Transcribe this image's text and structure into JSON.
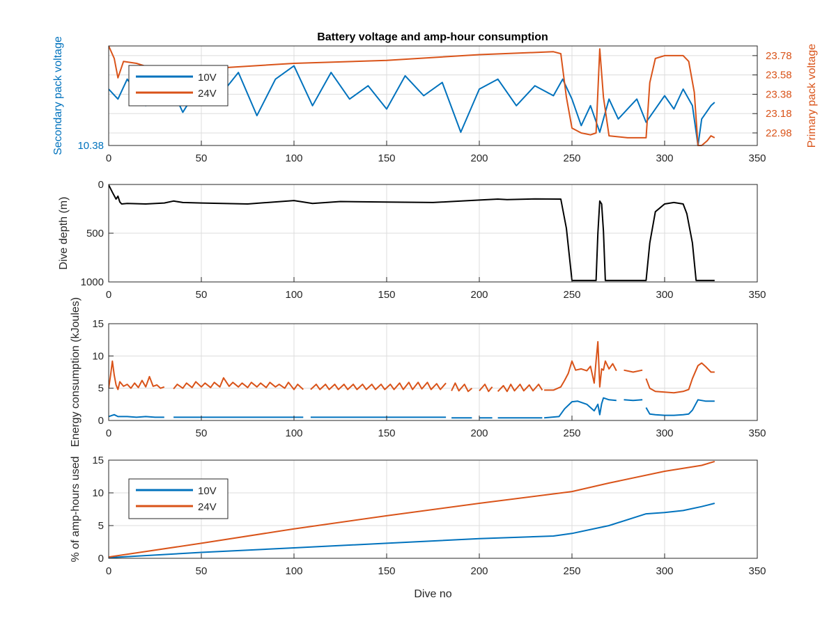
{
  "figure": {
    "title": "Battery voltage and amp-hour consumption",
    "xlabel_bottom": "Dive no",
    "colors": {
      "blue": "#0072BD",
      "orange": "#D95319",
      "black": "#000000",
      "grid": "#dcdcdc",
      "axis": "#262626"
    }
  },
  "chart_data": [
    {
      "id": "voltage",
      "type": "line",
      "title": "Battery voltage and amp-hour consumption",
      "xlabel": "",
      "ylabel_left": "Secondary pack voltage",
      "ylabel_right": "Primary pack voltage",
      "xlim": [
        0,
        350
      ],
      "xticks": [
        0,
        50,
        100,
        150,
        200,
        250,
        300,
        350
      ],
      "ylim_left": [
        10.38,
        10.68
      ],
      "yticks_left": [
        10.38
      ],
      "ylim_right": [
        22.85,
        23.88
      ],
      "yticks_right": [
        22.98,
        23.18,
        23.38,
        23.58,
        23.78
      ],
      "legend": {
        "entries": [
          "10V",
          "24V"
        ],
        "placement": "top-left"
      },
      "grid": true,
      "series": [
        {
          "name": "10V",
          "color": "#0072BD",
          "axis": "left",
          "x": [
            0,
            5,
            10,
            20,
            30,
            40,
            50,
            60,
            70,
            80,
            90,
            100,
            110,
            120,
            130,
            140,
            150,
            160,
            170,
            180,
            190,
            200,
            210,
            220,
            230,
            240,
            245,
            250,
            255,
            260,
            265,
            270,
            275,
            280,
            285,
            290,
            295,
            300,
            305,
            310,
            315,
            318,
            320,
            325,
            327
          ],
          "y": [
            10.55,
            10.52,
            10.58,
            10.5,
            10.6,
            10.48,
            10.57,
            10.53,
            10.6,
            10.47,
            10.58,
            10.62,
            10.5,
            10.6,
            10.52,
            10.56,
            10.49,
            10.59,
            10.53,
            10.57,
            10.42,
            10.55,
            10.58,
            10.5,
            10.56,
            10.53,
            10.58,
            10.52,
            10.44,
            10.5,
            10.42,
            10.52,
            10.46,
            10.49,
            10.52,
            10.45,
            10.49,
            10.53,
            10.49,
            10.55,
            10.5,
            10.38,
            10.46,
            10.5,
            10.51
          ]
        },
        {
          "name": "24V",
          "color": "#D95319",
          "axis": "right",
          "x": [
            0,
            3,
            5,
            8,
            15,
            20,
            30,
            50,
            100,
            150,
            200,
            240,
            244,
            247,
            250,
            255,
            260,
            263,
            265,
            267,
            270,
            280,
            290,
            292,
            295,
            300,
            310,
            313,
            316,
            318,
            320,
            323,
            325,
            327
          ],
          "y": [
            23.88,
            23.75,
            23.55,
            23.72,
            23.7,
            23.67,
            23.63,
            23.64,
            23.7,
            23.73,
            23.79,
            23.82,
            23.8,
            23.35,
            23.03,
            22.98,
            22.96,
            22.98,
            23.85,
            23.35,
            22.95,
            22.93,
            22.93,
            23.5,
            23.75,
            23.78,
            23.78,
            23.72,
            23.4,
            22.85,
            22.85,
            22.9,
            22.95,
            22.93
          ]
        }
      ]
    },
    {
      "id": "depth",
      "type": "line",
      "xlabel": "",
      "ylabel": "Dive depth (m)",
      "xlim": [
        0,
        350
      ],
      "xticks": [
        0,
        50,
        100,
        150,
        200,
        250,
        300,
        350
      ],
      "ylim": [
        0,
        1000
      ],
      "yticks": [
        0,
        500,
        1000
      ],
      "yreverse": true,
      "grid": true,
      "series": [
        {
          "color": "#000000",
          "x": [
            0,
            2,
            4,
            5,
            6,
            7,
            10,
            20,
            30,
            35,
            40,
            50,
            75,
            100,
            110,
            125,
            150,
            175,
            185,
            200,
            210,
            215,
            230,
            244,
            247,
            250,
            262,
            263,
            264,
            265,
            266,
            267,
            268,
            269,
            290,
            292,
            295,
            300,
            305,
            310,
            312,
            315,
            317,
            320,
            327
          ],
          "y": [
            5,
            80,
            150,
            120,
            180,
            200,
            195,
            200,
            190,
            170,
            185,
            190,
            200,
            165,
            195,
            175,
            180,
            185,
            175,
            160,
            150,
            155,
            148,
            150,
            450,
            985,
            985,
            985,
            500,
            170,
            200,
            480,
            985,
            985,
            985,
            600,
            280,
            200,
            185,
            200,
            300,
            600,
            985,
            985,
            985
          ]
        }
      ]
    },
    {
      "id": "energy",
      "type": "line",
      "xlabel": "",
      "ylabel": "Energy consumption (kJoules)",
      "xlim": [
        0,
        350
      ],
      "xticks": [
        0,
        50,
        100,
        150,
        200,
        250,
        300,
        350
      ],
      "ylim": [
        0,
        15
      ],
      "yticks": [
        0,
        5,
        10,
        15
      ],
      "grid": true,
      "series": [
        {
          "name": "24V",
          "color": "#D95319",
          "segments": [
            {
              "x": [
                0,
                1,
                2,
                3,
                4,
                5,
                6,
                8,
                10,
                12,
                14,
                16,
                18,
                20,
                22,
                24,
                26,
                28,
                30
              ],
              "y": [
                5,
                7,
                9.2,
                7,
                5.5,
                4.8,
                6,
                5.3,
                5.6,
                5,
                5.8,
                5.1,
                6.2,
                5.2,
                6.8,
                5.3,
                5.5,
                5.0,
                5.2
              ]
            },
            {
              "x": [
                35,
                37,
                40,
                42,
                45,
                47,
                50,
                52,
                55,
                57,
                60,
                62,
                65,
                67,
                70,
                72,
                75,
                77,
                80,
                82,
                85,
                87,
                90,
                92,
                95,
                97,
                100,
                102,
                105
              ],
              "y": [
                4.9,
                5.6,
                5,
                5.8,
                5.1,
                6,
                5.2,
                5.8,
                5.1,
                5.9,
                5.2,
                6.6,
                5.3,
                5.9,
                5.2,
                5.8,
                5.1,
                5.9,
                5.2,
                5.8,
                5.1,
                5.9,
                5.2,
                5.6,
                5,
                5.9,
                4.8,
                5.6,
                4.8
              ]
            },
            {
              "x": [
                109,
                112,
                114,
                117,
                119,
                122,
                124,
                127,
                129,
                132,
                134,
                137,
                139,
                142,
                144,
                147,
                149,
                152,
                154,
                157,
                159,
                162,
                164,
                167,
                169,
                172,
                174,
                177,
                179,
                182
              ],
              "y": [
                4.8,
                5.6,
                4.8,
                5.6,
                4.8,
                5.6,
                4.8,
                5.6,
                4.8,
                5.6,
                4.8,
                5.6,
                4.8,
                5.6,
                4.8,
                5.6,
                4.8,
                5.6,
                4.8,
                5.8,
                4.8,
                5.9,
                4.8,
                5.9,
                4.9,
                5.9,
                4.8,
                5.7,
                4.8,
                5.8
              ]
            },
            {
              "x": [
                185,
                187,
                189,
                192,
                194,
                196
              ],
              "y": [
                4.6,
                5.8,
                4.6,
                5.6,
                4.5,
                5.0
              ]
            },
            {
              "x": [
                200,
                203,
                205,
                207
              ],
              "y": [
                4.6,
                5.6,
                4.5,
                5.2
              ]
            },
            {
              "x": [
                210,
                213,
                215,
                217,
                219,
                222,
                224,
                227,
                229,
                232,
                234
              ],
              "y": [
                4.5,
                5.4,
                4.5,
                5.6,
                4.6,
                5.6,
                4.6,
                5.5,
                4.6,
                5.6,
                4.7
              ]
            },
            {
              "x": [
                235,
                240,
                244,
                246,
                248,
                250,
                252,
                255,
                258,
                260,
                262,
                263,
                264,
                265,
                266,
                267,
                268,
                270,
                272,
                274
              ],
              "y": [
                4.7,
                4.7,
                5.2,
                6.2,
                7.3,
                9.2,
                7.8,
                8,
                7.7,
                8.4,
                5.8,
                9.2,
                12.2,
                5.2,
                8.0,
                7.8,
                9.2,
                8.0,
                8.8,
                7.7
              ]
            },
            {
              "x": [
                278,
                283,
                288
              ],
              "y": [
                7.8,
                7.5,
                7.8
              ]
            },
            {
              "x": [
                290,
                292,
                295,
                300,
                305,
                310,
                313,
                315,
                318,
                320,
                322,
                325,
                327
              ],
              "y": [
                6.5,
                5.0,
                4.5,
                4.4,
                4.3,
                4.5,
                4.8,
                6.5,
                8.5,
                8.9,
                8.4,
                7.5,
                7.5
              ]
            }
          ]
        },
        {
          "name": "10V",
          "color": "#0072BD",
          "segments": [
            {
              "x": [
                0,
                2,
                3,
                5,
                10,
                15,
                20,
                25,
                30
              ],
              "y": [
                0.6,
                0.8,
                0.9,
                0.6,
                0.6,
                0.5,
                0.6,
                0.5,
                0.5
              ]
            },
            {
              "x": [
                35,
                50,
                75,
                100,
                105
              ],
              "y": [
                0.5,
                0.5,
                0.5,
                0.5,
                0.5
              ]
            },
            {
              "x": [
                109,
                130,
                150,
                170,
                182
              ],
              "y": [
                0.5,
                0.5,
                0.5,
                0.5,
                0.5
              ]
            },
            {
              "x": [
                185,
                196
              ],
              "y": [
                0.4,
                0.4
              ]
            },
            {
              "x": [
                200,
                207
              ],
              "y": [
                0.4,
                0.4
              ]
            },
            {
              "x": [
                210,
                234
              ],
              "y": [
                0.4,
                0.4
              ]
            },
            {
              "x": [
                235,
                243,
                246,
                250,
                253,
                258,
                262,
                264,
                265,
                266,
                267,
                270,
                274
              ],
              "y": [
                0.4,
                0.6,
                1.8,
                2.9,
                3.0,
                2.5,
                1.5,
                2.5,
                0.9,
                2.6,
                3.5,
                3.2,
                3.1
              ]
            },
            {
              "x": [
                278,
                283,
                288
              ],
              "y": [
                3.2,
                3.1,
                3.2
              ]
            },
            {
              "x": [
                290,
                292,
                295,
                300,
                305,
                310,
                313,
                315,
                318,
                322,
                327
              ],
              "y": [
                2.0,
                1.0,
                0.9,
                0.8,
                0.8,
                0.9,
                1.0,
                1.6,
                3.2,
                3.0,
                3.0
              ]
            }
          ]
        }
      ]
    },
    {
      "id": "amphours",
      "type": "line",
      "xlabel": "Dive no",
      "ylabel": "% of amp-hours used",
      "xlim": [
        0,
        350
      ],
      "xticks": [
        0,
        50,
        100,
        150,
        200,
        250,
        300,
        350
      ],
      "ylim": [
        0,
        15
      ],
      "yticks": [
        0,
        5,
        10,
        15
      ],
      "legend": {
        "entries": [
          "10V",
          "24V"
        ],
        "placement": "upper-left"
      },
      "grid": true,
      "series": [
        {
          "name": "10V",
          "color": "#0072BD",
          "x": [
            0,
            50,
            100,
            150,
            200,
            240,
            250,
            270,
            290,
            300,
            310,
            320,
            327
          ],
          "y": [
            0.1,
            0.9,
            1.6,
            2.3,
            3.0,
            3.4,
            3.8,
            5.0,
            6.8,
            7.0,
            7.3,
            7.9,
            8.4
          ]
        },
        {
          "name": "24V",
          "color": "#D95319",
          "x": [
            0,
            50,
            100,
            150,
            200,
            250,
            270,
            300,
            320,
            327
          ],
          "y": [
            0.2,
            2.3,
            4.5,
            6.5,
            8.4,
            10.2,
            11.5,
            13.3,
            14.2,
            14.8
          ]
        }
      ]
    }
  ]
}
